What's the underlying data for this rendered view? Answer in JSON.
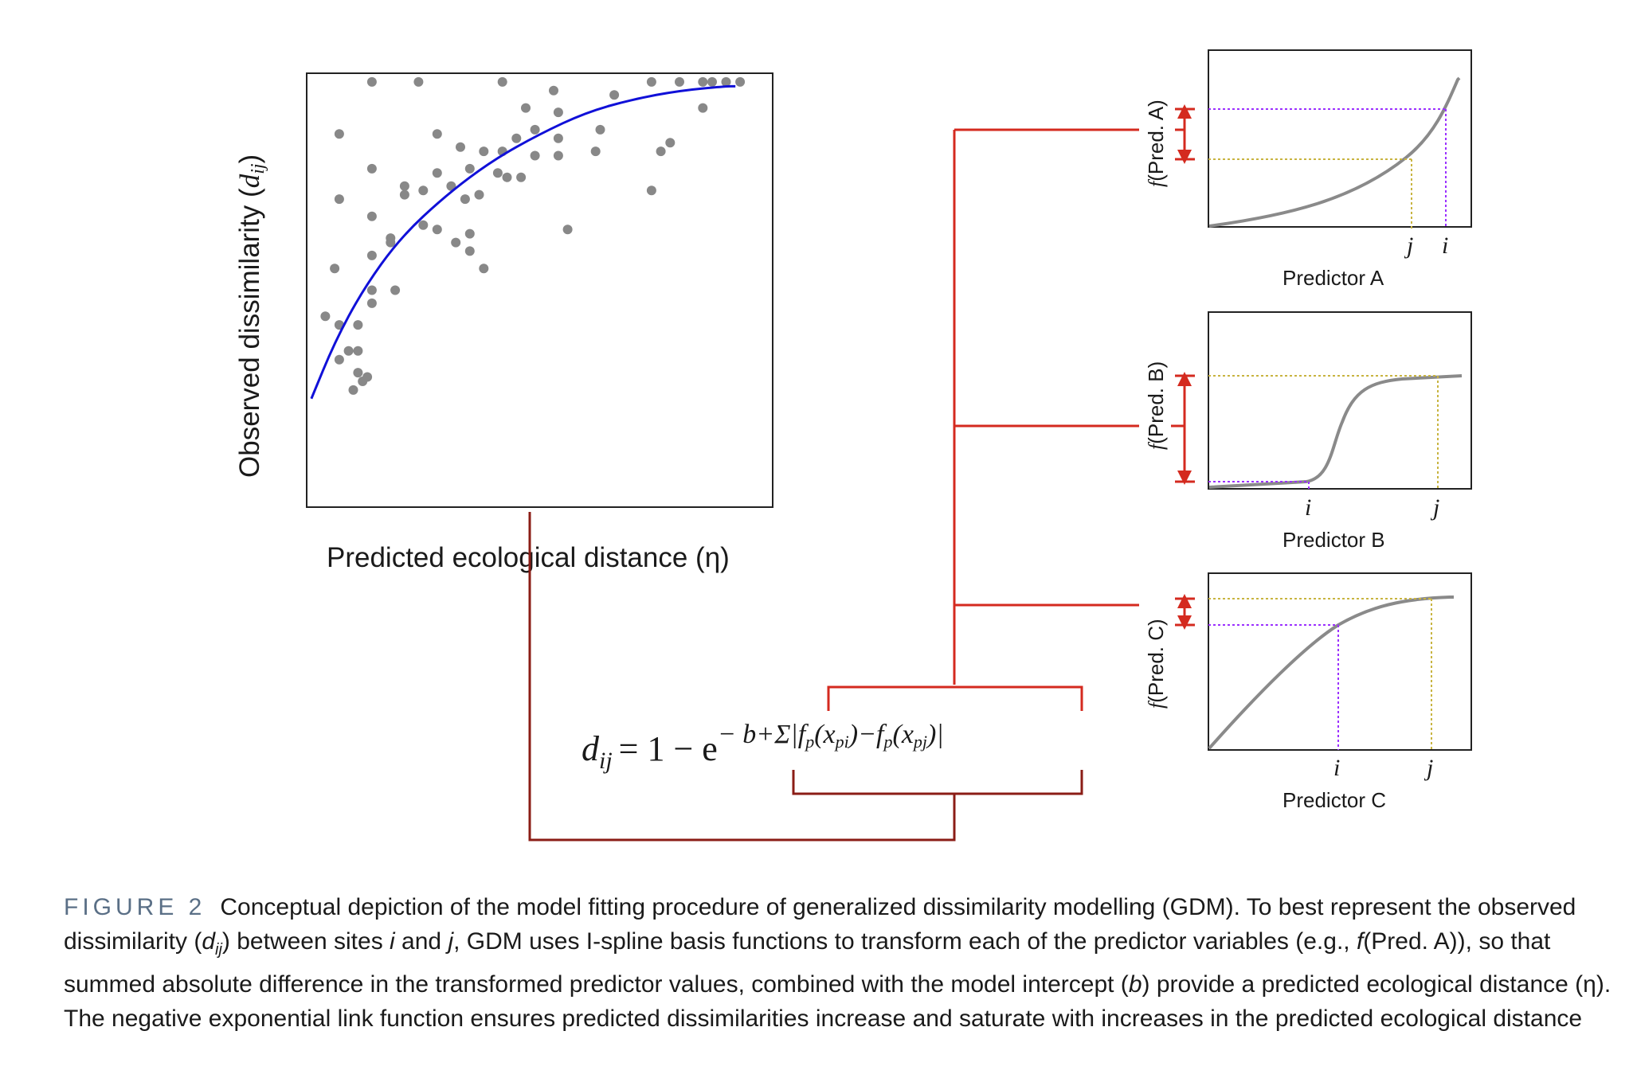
{
  "colors": {
    "scatter_point": "#888888",
    "fit_curve": "#1010d8",
    "red_connector": "#d42a1f",
    "dark_red_connector": "#8b1d16",
    "predictor_curve": "#8a8a8a",
    "guide_purple": "#9b30ff",
    "guide_yellow": "#c8b440"
  },
  "main_plot": {
    "ylabel_text": "Observed dissimilarity (",
    "ylabel_sym": "d",
    "ylabel_sub": "ij",
    "ylabel_close": ")",
    "xlabel": "Predicted ecological distance (η)"
  },
  "chart_data": {
    "type": "scatter",
    "title": "",
    "xlabel": "Predicted ecological distance (η)",
    "ylabel": "Observed dissimilarity (dij)",
    "axis_ticks": false,
    "xlim": [
      0,
      1
    ],
    "ylim": [
      0,
      1
    ],
    "points": [
      [
        0.14,
        0.98
      ],
      [
        0.24,
        0.98
      ],
      [
        0.42,
        0.98
      ],
      [
        0.53,
        0.96
      ],
      [
        0.74,
        0.98
      ],
      [
        0.8,
        0.98
      ],
      [
        0.85,
        0.98
      ],
      [
        0.87,
        0.98
      ],
      [
        0.9,
        0.98
      ],
      [
        0.93,
        0.98
      ],
      [
        0.47,
        0.92
      ],
      [
        0.54,
        0.91
      ],
      [
        0.66,
        0.95
      ],
      [
        0.85,
        0.92
      ],
      [
        0.07,
        0.86
      ],
      [
        0.28,
        0.86
      ],
      [
        0.45,
        0.85
      ],
      [
        0.49,
        0.87
      ],
      [
        0.54,
        0.85
      ],
      [
        0.63,
        0.87
      ],
      [
        0.33,
        0.83
      ],
      [
        0.38,
        0.82
      ],
      [
        0.42,
        0.82
      ],
      [
        0.49,
        0.81
      ],
      [
        0.54,
        0.81
      ],
      [
        0.62,
        0.82
      ],
      [
        0.76,
        0.82
      ],
      [
        0.78,
        0.84
      ],
      [
        0.14,
        0.78
      ],
      [
        0.35,
        0.78
      ],
      [
        0.41,
        0.77
      ],
      [
        0.43,
        0.76
      ],
      [
        0.46,
        0.76
      ],
      [
        0.28,
        0.77
      ],
      [
        0.31,
        0.74
      ],
      [
        0.21,
        0.74
      ],
      [
        0.21,
        0.72
      ],
      [
        0.25,
        0.73
      ],
      [
        0.34,
        0.71
      ],
      [
        0.37,
        0.72
      ],
      [
        0.07,
        0.71
      ],
      [
        0.74,
        0.73
      ],
      [
        0.56,
        0.64
      ],
      [
        0.14,
        0.67
      ],
      [
        0.28,
        0.64
      ],
      [
        0.35,
        0.63
      ],
      [
        0.32,
        0.61
      ],
      [
        0.18,
        0.61
      ],
      [
        0.06,
        0.55
      ],
      [
        0.14,
        0.58
      ],
      [
        0.18,
        0.62
      ],
      [
        0.25,
        0.65
      ],
      [
        0.14,
        0.5
      ],
      [
        0.38,
        0.55
      ],
      [
        0.35,
        0.59
      ],
      [
        0.19,
        0.5
      ],
      [
        0.04,
        0.44
      ],
      [
        0.07,
        0.42
      ],
      [
        0.11,
        0.42
      ],
      [
        0.14,
        0.47
      ],
      [
        0.07,
        0.34
      ],
      [
        0.09,
        0.36
      ],
      [
        0.11,
        0.36
      ],
      [
        0.11,
        0.31
      ],
      [
        0.12,
        0.29
      ],
      [
        0.13,
        0.3
      ],
      [
        0.1,
        0.27
      ]
    ],
    "fit_curve": [
      [
        0.01,
        0.25
      ],
      [
        0.06,
        0.38
      ],
      [
        0.12,
        0.5
      ],
      [
        0.2,
        0.62
      ],
      [
        0.3,
        0.72
      ],
      [
        0.4,
        0.8
      ],
      [
        0.5,
        0.86
      ],
      [
        0.6,
        0.91
      ],
      [
        0.7,
        0.94
      ],
      [
        0.8,
        0.96
      ],
      [
        0.9,
        0.97
      ],
      [
        0.92,
        0.97
      ]
    ]
  },
  "formula": {
    "lhs": "d",
    "lhs_sub": "ij",
    "equals": "= 1 − e",
    "exponent": "− b+Σ|f",
    "exp_sub_p1": "p",
    "exp_mid1": "(x",
    "exp_sub_pi": "pi",
    "exp_mid2": ")−f",
    "exp_sub_p2": "p",
    "exp_mid3": "(x",
    "exp_sub_pj": "pj",
    "exp_end": ")|"
  },
  "predictors": [
    {
      "name": "Predictor A",
      "ylabel_f": "f",
      "ylabel_rest": "(Pred. A)",
      "tick_labels": [
        "j",
        "i"
      ],
      "shape": "exponential"
    },
    {
      "name": "Predictor B",
      "ylabel_f": "f",
      "ylabel_rest": "(Pred. B)",
      "tick_labels": [
        "i",
        "j"
      ],
      "shape": "sigmoid"
    },
    {
      "name": "Predictor C",
      "ylabel_f": "f",
      "ylabel_rest": "(Pred. C)",
      "tick_labels": [
        "i",
        "j"
      ],
      "shape": "saturating"
    }
  ],
  "caption": {
    "label": "FIGURE 2",
    "text_1": "Conceptual depiction of the model fitting procedure of generalized dissimilarity modelling (GDM). To best represent the observed dissimilarity (",
    "sym_d": "d",
    "sym_ij": "ij",
    "text_2": ") between sites ",
    "sym_i": "i",
    "text_3": " and ",
    "sym_j": "j",
    "text_4": ", GDM uses I-spline basis functions to transform each of the predictor variables (e.g., ",
    "sym_f": "f",
    "text_5": "(Pred. A)), so that summed absolute difference in the transformed predictor values, combined with the model intercept (",
    "sym_b": "b",
    "text_6": ") provide a predicted ecological distance (η). The negative exponential link function ensures predicted dissimilarities increase and saturate with increases in the predicted ecological distance"
  }
}
